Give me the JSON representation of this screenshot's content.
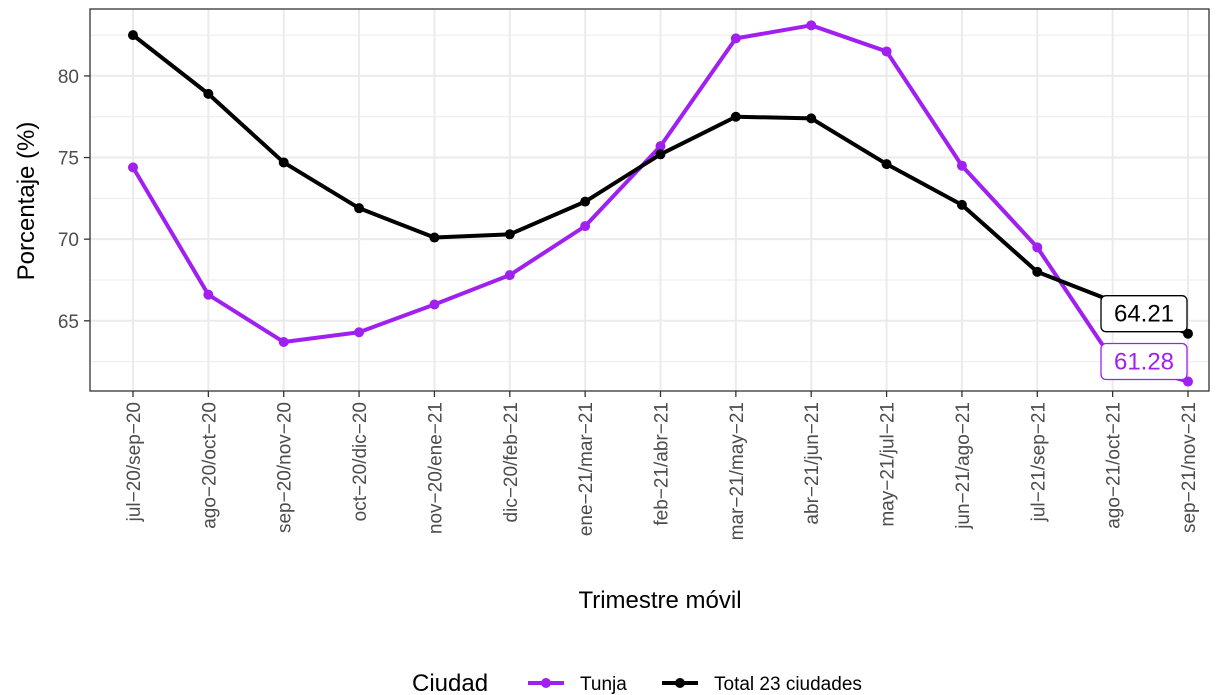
{
  "chart_data": {
    "type": "line",
    "xlabel": "Trimestre móvil",
    "ylabel": "Porcentaje (%)",
    "ylim": [
      60.7,
      84.1
    ],
    "yticks": [
      65,
      70,
      75,
      80
    ],
    "grid": true,
    "legend_position": "bottom",
    "legend_title": "Ciudad",
    "categories": [
      "jul−20/sep−20",
      "ago−20/oct−20",
      "sep−20/nov−20",
      "oct−20/dic−20",
      "nov−20/ene−21",
      "dic−20/feb−21",
      "ene−21/mar−21",
      "feb−21/abr−21",
      "mar−21/may−21",
      "abr−21/jun−21",
      "may−21/jul−21",
      "jun−21/ago−21",
      "jul−21/sep−21",
      "ago−21/oct−21",
      "sep−21/nov−21"
    ],
    "series": [
      {
        "name": "Tunja",
        "color": "#a020f0",
        "values": [
          74.4,
          66.6,
          63.7,
          64.3,
          66.0,
          67.8,
          70.8,
          75.7,
          82.3,
          83.1,
          81.5,
          74.5,
          69.5,
          62.6,
          61.28
        ],
        "end_label": "61.28"
      },
      {
        "name": "Total 23 ciudades",
        "color": "#000000",
        "values": [
          82.5,
          78.9,
          74.7,
          71.9,
          70.1,
          70.3,
          72.3,
          75.2,
          77.5,
          77.4,
          74.6,
          72.1,
          68.0,
          66.2,
          64.21
        ],
        "end_label": "64.21"
      }
    ]
  }
}
